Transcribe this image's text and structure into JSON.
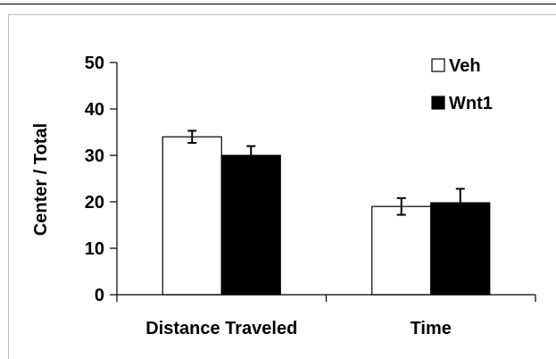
{
  "chart_data": {
    "type": "bar",
    "title": "",
    "xlabel": "",
    "ylabel": "Center / Total",
    "ylim": [
      0,
      50
    ],
    "yticks": [
      0,
      10,
      20,
      30,
      40,
      50
    ],
    "categories": [
      "Distance Traveled",
      "Time"
    ],
    "series": [
      {
        "name": "Veh",
        "fill": "#ffffff",
        "stroke": "#000000",
        "values": [
          34,
          19
        ],
        "errors": [
          1.3,
          1.8
        ]
      },
      {
        "name": "Wnt1",
        "fill": "#000000",
        "stroke": "#000000",
        "values": [
          30,
          19.8
        ],
        "errors": [
          2.0,
          3.0
        ]
      }
    ],
    "legend": {
      "position": "top-right"
    },
    "grid": false
  }
}
